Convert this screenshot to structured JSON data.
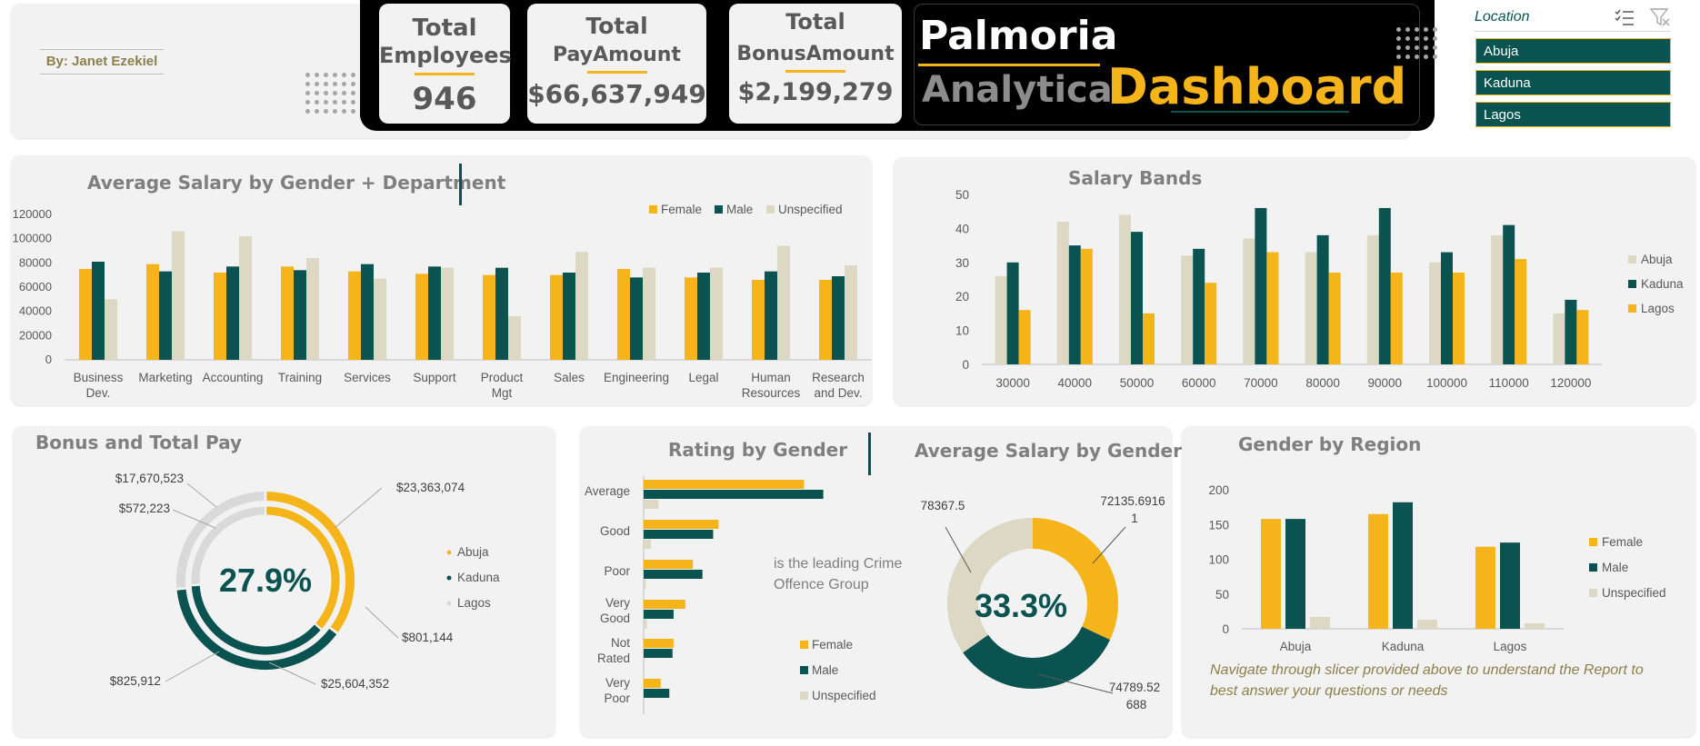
{
  "colors": {
    "gold": "#f5b41a",
    "teal": "#0b5351",
    "beige": "#ddd8c4",
    "gray_light": "#d9d9d9",
    "panel": "#f2f2f2"
  },
  "header": {
    "author": "By: Janet Ezekiel",
    "kpis": [
      {
        "title1": "Total",
        "title2": "Employees",
        "value": "946"
      },
      {
        "title1": "Total",
        "title2": "PayAmount",
        "value": "$66,637,949"
      },
      {
        "title1": "Total",
        "title2": "BonusAmount",
        "value": "$2,199,279"
      }
    ],
    "brand": {
      "line1": "Palmoria",
      "line2a": "Analytical",
      "line2b": "Dashboard"
    }
  },
  "slicer": {
    "title": "Location",
    "icons": [
      "multi-select-icon",
      "clear-filter-icon"
    ],
    "items": [
      "Abuja",
      "Kaduna",
      "Lagos"
    ]
  },
  "salary_by_dept": {
    "title": "Average Salary by Gender + Department",
    "legend": [
      "Female",
      "Male",
      "Unspecified"
    ],
    "y_ticks": [
      "0",
      "20000",
      "40000",
      "60000",
      "80000",
      "100000",
      "120000"
    ],
    "categories": [
      [
        "Business",
        "Dev."
      ],
      [
        "Marketing"
      ],
      [
        "Accounting"
      ],
      [
        "Training"
      ],
      [
        "Services"
      ],
      [
        "Support"
      ],
      [
        "Product",
        "Mgt"
      ],
      [
        "Sales"
      ],
      [
        "Engineering"
      ],
      [
        "Legal"
      ],
      [
        "Human",
        "Resources"
      ],
      [
        "Research",
        "and Dev."
      ]
    ]
  },
  "salary_bands": {
    "title": "Salary Bands",
    "legend": [
      "Abuja",
      "Kaduna",
      "Lagos"
    ],
    "y_ticks": [
      "0",
      "10",
      "20",
      "30",
      "40",
      "50"
    ],
    "categories": [
      "30000",
      "40000",
      "50000",
      "60000",
      "70000",
      "80000",
      "90000",
      "100000",
      "110000",
      "120000"
    ]
  },
  "bonus_pay": {
    "title": "Bonus and Total Pay",
    "center": "27.9%",
    "labels": [
      "$17,670,523",
      "$572,223",
      "$23,363,074",
      "$801,144",
      "$825,912",
      "$25,604,352"
    ],
    "legend": [
      "Abuja",
      "Kaduna",
      "Lagos"
    ]
  },
  "rating": {
    "title": "Rating by Gender",
    "categories": [
      [
        "Average"
      ],
      [
        "Good"
      ],
      [
        "Poor"
      ],
      [
        "Very",
        "Good"
      ],
      [
        "Not",
        "Rated"
      ],
      [
        "Very",
        "Poor"
      ]
    ],
    "legend": [
      "Female",
      "Male",
      "Unspecified"
    ],
    "note_line1": "is the leading Crime",
    "note_line2": "Offence Group"
  },
  "avg_salary_gender": {
    "title": "Average Salary by Gender",
    "center": "33.3%",
    "label_top_left": "78367.5",
    "label_top_right_1": "72135.6916",
    "label_top_right_2": "1",
    "label_bottom_1": "74789.52",
    "label_bottom_2": "688"
  },
  "gender_region": {
    "title": "Gender by Region",
    "legend": [
      "Female",
      "Male",
      "Unspecified"
    ],
    "y_ticks": [
      "0",
      "50",
      "100",
      "150",
      "200"
    ],
    "categories": [
      "Abuja",
      "Kaduna",
      "Lagos"
    ],
    "note_line1": "Navigate through slicer provided above  to understand the Report to",
    "note_line2": "best answer your questions or needs"
  },
  "chart_data": [
    {
      "type": "bar",
      "title": "Average Salary by Gender + Department",
      "categories": [
        "Business Dev.",
        "Marketing",
        "Accounting",
        "Training",
        "Services",
        "Support",
        "Product Mgt",
        "Sales",
        "Engineering",
        "Legal",
        "Human Resources",
        "Research and Dev."
      ],
      "series": [
        {
          "name": "Female",
          "values": [
            75000,
            79000,
            72000,
            77000,
            73000,
            71000,
            70000,
            70000,
            75000,
            68000,
            66000,
            66000
          ]
        },
        {
          "name": "Male",
          "values": [
            81000,
            73000,
            77000,
            74000,
            79000,
            77000,
            76000,
            72000,
            68000,
            72000,
            73000,
            69000
          ]
        },
        {
          "name": "Unspecified",
          "values": [
            50000,
            106000,
            102000,
            84000,
            67000,
            76000,
            36000,
            89000,
            76000,
            76000,
            94000,
            78000
          ]
        }
      ],
      "ylim": [
        0,
        120000
      ],
      "legend_position": "top-right"
    },
    {
      "type": "bar",
      "title": "Salary Bands",
      "categories": [
        "30000",
        "40000",
        "50000",
        "60000",
        "70000",
        "80000",
        "90000",
        "100000",
        "110000",
        "120000"
      ],
      "series": [
        {
          "name": "Abuja",
          "values": [
            26,
            42,
            44,
            32,
            37,
            33,
            38,
            30,
            38,
            15
          ]
        },
        {
          "name": "Kaduna",
          "values": [
            30,
            35,
            39,
            34,
            46,
            38,
            46,
            33,
            41,
            19
          ]
        },
        {
          "name": "Lagos",
          "values": [
            16,
            34,
            15,
            24,
            33,
            27,
            27,
            27,
            31,
            16
          ]
        }
      ],
      "ylim": [
        0,
        50
      ],
      "legend_position": "right"
    },
    {
      "type": "pie",
      "title": "Bonus and Total Pay",
      "rings": [
        {
          "ring": "outer",
          "slices": [
            {
              "name": "Abuja",
              "value": 23363074
            },
            {
              "name": "Kaduna",
              "value": 25604352
            },
            {
              "name": "Lagos",
              "value": 17670523
            }
          ]
        },
        {
          "ring": "inner",
          "slices": [
            {
              "name": "Abuja",
              "value": 801144
            },
            {
              "name": "Kaduna",
              "value": 825912
            },
            {
              "name": "Lagos",
              "value": 572223
            }
          ]
        }
      ],
      "legend_position": "right"
    },
    {
      "type": "bar",
      "orientation": "horizontal",
      "title": "Rating by Gender",
      "categories": [
        "Average",
        "Good",
        "Poor",
        "Very Good",
        "Not Rated",
        "Very Poor"
      ],
      "series": [
        {
          "name": "Female",
          "values": [
            150,
            70,
            46,
            39,
            28,
            16
          ]
        },
        {
          "name": "Male",
          "values": [
            168,
            65,
            55,
            28,
            27,
            24
          ]
        },
        {
          "name": "Unspecified",
          "values": [
            14,
            7,
            2,
            3,
            1,
            1
          ]
        }
      ],
      "legend_position": "right"
    },
    {
      "type": "pie",
      "title": "Average Salary by Gender",
      "slices": [
        {
          "name": "Female",
          "value": 72135.69161
        },
        {
          "name": "Male",
          "value": 74789.52688
        },
        {
          "name": "Unspecified",
          "value": 78367.5
        }
      ]
    },
    {
      "type": "bar",
      "title": "Gender by Region",
      "categories": [
        "Abuja",
        "Kaduna",
        "Lagos"
      ],
      "series": [
        {
          "name": "Female",
          "values": [
            158,
            165,
            118
          ]
        },
        {
          "name": "Male",
          "values": [
            158,
            182,
            124
          ]
        },
        {
          "name": "Unspecified",
          "values": [
            17,
            13,
            8
          ]
        }
      ],
      "ylim": [
        0,
        200
      ],
      "legend_position": "right"
    }
  ]
}
